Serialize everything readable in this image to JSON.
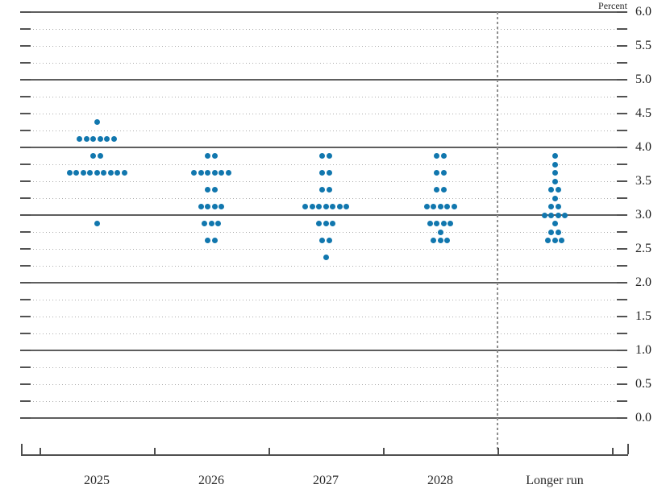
{
  "chart": {
    "colors": {
      "dot": "#1177ae",
      "solid_gridline": "#5e5e5e",
      "dotted_gridline": "#adadad",
      "axis": "#4f4f4f",
      "separator": "#8f8f8f",
      "text": "#1f1f1f"
    }
  },
  "chart_data": {
    "type": "scatter",
    "title": "",
    "xlabel": "",
    "ylabel": "Percent",
    "ylim": [
      0.0,
      6.0
    ],
    "gridline_step": 0.25,
    "solid_gridline_step": 1.0,
    "ytick_label_step": 0.5,
    "ytick_labels": [
      "6.0",
      "5.5",
      "5.0",
      "4.5",
      "4.0",
      "3.5",
      "3.0",
      "2.5",
      "2.0",
      "1.5",
      "1.0",
      "0.5",
      "0.0"
    ],
    "legend": [],
    "grid": "on",
    "categories": [
      "2025",
      "2026",
      "2027",
      "2028",
      "Longer run"
    ],
    "separator_before_category": "Longer run",
    "series": [
      {
        "name": "2025",
        "dots": [
          [
            4.375,
            1
          ],
          [
            4.125,
            6
          ],
          [
            3.875,
            2
          ],
          [
            3.625,
            9
          ],
          [
            2.875,
            1
          ]
        ]
      },
      {
        "name": "2026",
        "dots": [
          [
            3.875,
            2
          ],
          [
            3.625,
            6
          ],
          [
            3.375,
            2
          ],
          [
            3.125,
            4
          ],
          [
            2.875,
            3
          ],
          [
            2.625,
            2
          ]
        ]
      },
      {
        "name": "2027",
        "dots": [
          [
            3.875,
            2
          ],
          [
            3.625,
            2
          ],
          [
            3.375,
            2
          ],
          [
            3.125,
            7
          ],
          [
            2.875,
            3
          ],
          [
            2.625,
            2
          ],
          [
            2.375,
            1
          ]
        ]
      },
      {
        "name": "2028",
        "dots": [
          [
            3.875,
            2
          ],
          [
            3.625,
            2
          ],
          [
            3.375,
            2
          ],
          [
            3.125,
            5
          ],
          [
            2.875,
            4
          ],
          [
            2.75,
            1
          ],
          [
            2.625,
            3
          ]
        ]
      },
      {
        "name": "Longer run",
        "dots": [
          [
            3.875,
            1
          ],
          [
            3.75,
            1
          ],
          [
            3.625,
            1
          ],
          [
            3.5,
            1
          ],
          [
            3.375,
            2
          ],
          [
            3.25,
            1
          ],
          [
            3.125,
            2
          ],
          [
            3.0,
            4
          ],
          [
            2.875,
            1
          ],
          [
            2.75,
            2
          ],
          [
            2.625,
            3
          ]
        ]
      }
    ]
  }
}
